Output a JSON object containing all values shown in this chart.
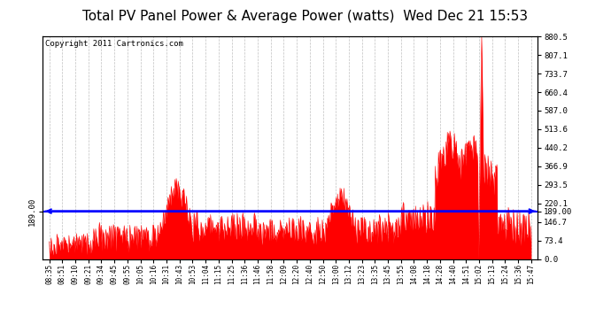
{
  "title": "Total PV Panel Power & Average Power (watts)  Wed Dec 21 15:53",
  "copyright": "Copyright 2011 Cartronics.com",
  "average_power": 189.0,
  "y_right_ticks": [
    0.0,
    73.4,
    146.7,
    220.1,
    293.5,
    366.9,
    440.2,
    513.6,
    587.0,
    660.4,
    733.7,
    807.1,
    880.5
  ],
  "ylim": [
    0,
    880.5
  ],
  "x_tick_labels": [
    "08:35",
    "08:51",
    "09:10",
    "09:21",
    "09:34",
    "09:45",
    "09:55",
    "10:05",
    "10:16",
    "10:31",
    "10:43",
    "10:53",
    "11:04",
    "11:15",
    "11:25",
    "11:36",
    "11:46",
    "11:58",
    "12:09",
    "12:20",
    "12:40",
    "12:50",
    "13:00",
    "13:12",
    "13:23",
    "13:35",
    "13:45",
    "13:55",
    "14:08",
    "14:18",
    "14:28",
    "14:40",
    "14:51",
    "15:02",
    "15:13",
    "15:24",
    "15:36",
    "15:47"
  ],
  "fill_color": "#FF0000",
  "line_color": "#FF0000",
  "average_line_color": "#0000FF",
  "background_color": "#FFFFFF",
  "plot_bg_color": "#FFFFFF",
  "grid_color": "#C0C0C0",
  "title_fontsize": 11,
  "copyright_fontsize": 6.5
}
